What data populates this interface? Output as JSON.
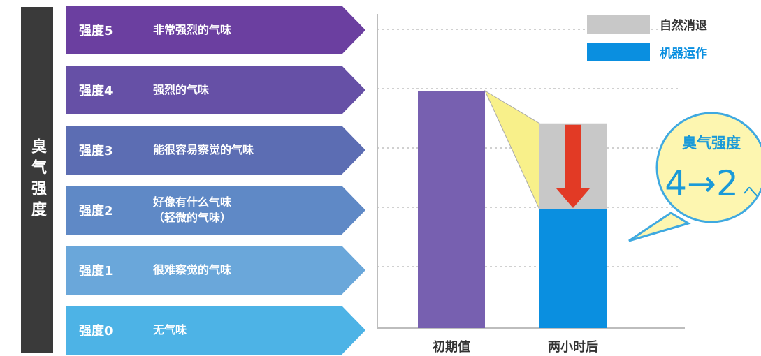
{
  "side_label": "臭气强度",
  "levels": [
    {
      "name": "强度5",
      "desc": "非常强烈的气味",
      "color": "#6b3fa0"
    },
    {
      "name": "强度4",
      "desc": "强烈的气味",
      "color": "#6650a6"
    },
    {
      "name": "强度3",
      "desc": "能很容易察觉的气味",
      "color": "#5c6db3"
    },
    {
      "name": "强度2",
      "desc": "好像有什么气味\n（轻微的气味）",
      "color": "#5f89c6"
    },
    {
      "name": "强度1",
      "desc": "很难察觉的气味",
      "color": "#6aa7da"
    },
    {
      "name": "强度0",
      "desc": "无气味",
      "color": "#4db3e6"
    }
  ],
  "chart_data": {
    "type": "bar",
    "categories": [
      "初期值",
      "两小时后"
    ],
    "ylim": [
      0,
      5
    ],
    "grid": true,
    "legend": [
      {
        "label": "自然消退",
        "color": "#c8c8c8"
      },
      {
        "label": "机器运作",
        "color": "#0a8fe0"
      }
    ],
    "series": [
      {
        "name": "机器运作",
        "values": [
          4,
          2
        ]
      },
      {
        "name": "自然消退",
        "values": [
          0,
          1.45
        ]
      }
    ],
    "bar_colors": {
      "initial": "#7760b0",
      "machine": "#0a8fe0",
      "natural": "#c8c8c8"
    },
    "callout": {
      "title": "臭气强度",
      "value": "4→2",
      "suffix": "へ"
    }
  }
}
